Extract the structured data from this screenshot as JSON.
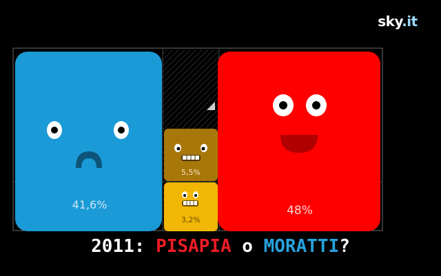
{
  "logo": {
    "text": "sky",
    "suffix": ".it"
  },
  "tiles": {
    "blue": {
      "value": "41,6%",
      "color": "#1a9ad6",
      "expression": "sad"
    },
    "red": {
      "value": "48%",
      "color": "#ff0000",
      "expression": "happy"
    },
    "brown": {
      "value": "5,5%",
      "color": "#a8770a",
      "expression": "grin"
    },
    "yellow": {
      "value": "3,2%",
      "color": "#f2b705",
      "expression": "grin"
    }
  },
  "headline": {
    "prefix": "2011: ",
    "candidate_a": "PISAPIA",
    "connector": " o ",
    "candidate_b": "MORATTI",
    "suffix": "?",
    "colors": {
      "candidate_a": "#ee1c25",
      "candidate_b": "#27a3de",
      "text": "#ffffff"
    }
  }
}
